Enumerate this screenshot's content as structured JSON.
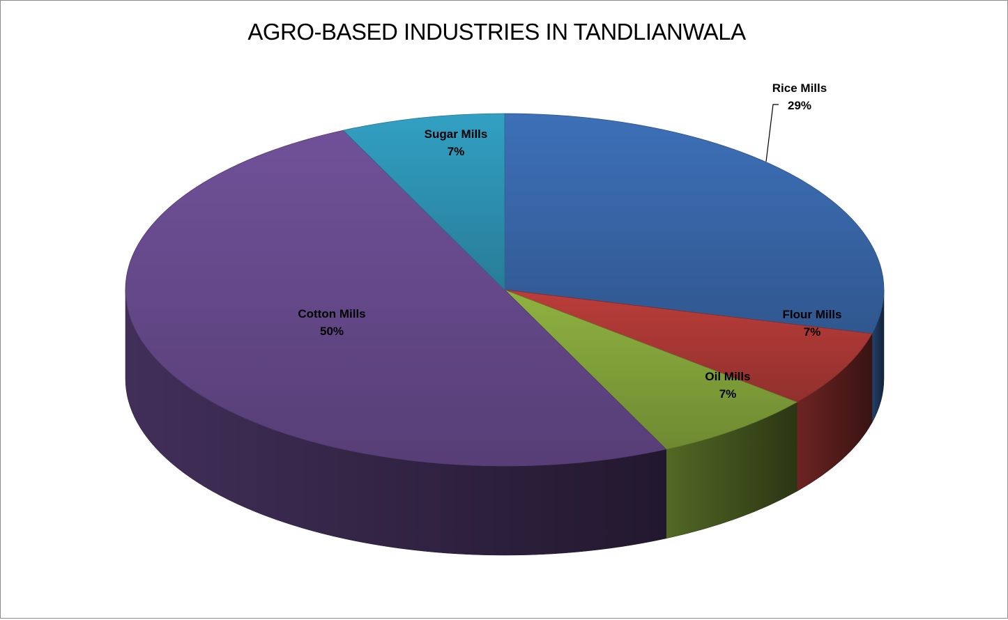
{
  "chart_data": {
    "type": "pie",
    "title": "AGRO-BASED INDUSTRIES IN TANDLIANWALA",
    "three_d": true,
    "slices": [
      {
        "label": "Rice Mills",
        "value": 29,
        "display": "29%",
        "color": "#3a6aae"
      },
      {
        "label": "Flour Mills",
        "value": 7,
        "display": "7%",
        "color": "#b03a37"
      },
      {
        "label": "Oil Mills",
        "value": 7,
        "display": "7%",
        "color": "#86a83c"
      },
      {
        "label": "Cotton Mills",
        "value": 50,
        "display": "50%",
        "color": "#6a4c90"
      },
      {
        "label": "Sugar Mills",
        "value": 7,
        "display": "7%",
        "color": "#2f97b8"
      }
    ],
    "legend": "none"
  }
}
